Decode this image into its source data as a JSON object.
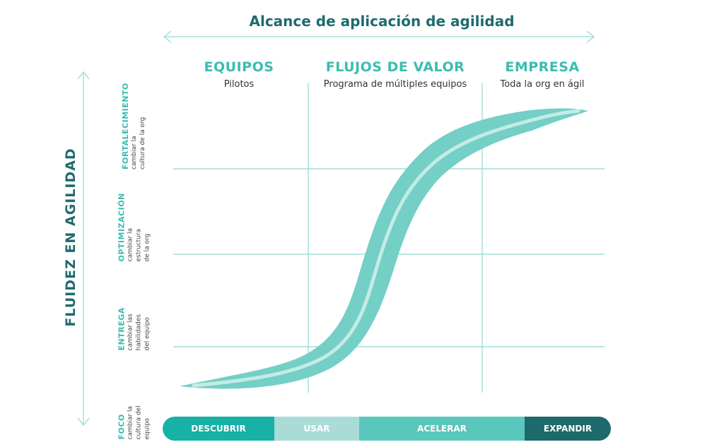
{
  "title": "Alcance de aplicación de agilidad",
  "y_title": "FLUIDEZ  EN AGILIDAD",
  "columns": [
    {
      "name": "EQUIPOS",
      "sub": "Pilotos"
    },
    {
      "name": "FLUJOS DE VALOR",
      "sub": "Programa de múltiples equipos"
    },
    {
      "name": "EMPRESA",
      "sub": "Toda la org en ágil"
    }
  ],
  "levels": [
    {
      "name": "FORTALECIMIENTO",
      "desc_1": "cambiar la",
      "desc_2": "cultura de la org",
      "desc_3": ""
    },
    {
      "name": "OPTIMIZACIÓN",
      "desc_1": "cambiar la",
      "desc_2": "estructura",
      "desc_3": "de la org"
    },
    {
      "name": "ENTREGA",
      "desc_1": "cambiar las",
      "desc_2": "habilidades",
      "desc_3": "del equipo"
    },
    {
      "name": "FOCO",
      "desc_1": "cambiar la",
      "desc_2": "cultura del",
      "desc_3": "equipo"
    }
  ],
  "stages": [
    {
      "label": "DESCUBRIR",
      "color": "#17b1a6"
    },
    {
      "label": "USAR",
      "color": "#a9dcd7"
    },
    {
      "label": "ACELERAR",
      "color": "#5ac7bc"
    },
    {
      "label": "EXPANDIR",
      "color": "#1c6a6c"
    }
  ],
  "colors": {
    "dark_teal": "#1f6b6e",
    "teal": "#3bbcb1",
    "curve": "#74cfc6",
    "curve_highlight": "#c4ebe6",
    "grid": "#8fd8d0",
    "arrow": "#a6e0da"
  },
  "icons": [
    "double-arrow-horizontal-icon",
    "double-arrow-vertical-icon"
  ]
}
